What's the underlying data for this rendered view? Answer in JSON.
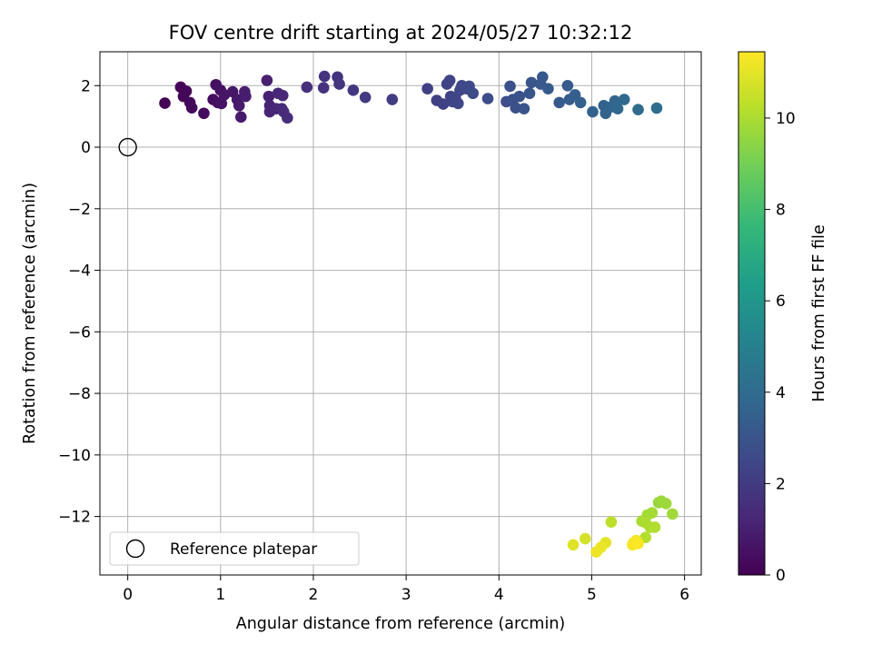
{
  "chart_data": {
    "type": "scatter",
    "title": "FOV centre drift starting at 2024/05/27 10:32:12",
    "xlabel": "Angular distance from reference (arcmin)",
    "ylabel": "Rotation from reference (arcmin)",
    "xlim": [
      -0.3,
      6.18
    ],
    "ylim": [
      -13.9,
      3.1
    ],
    "xticks": [
      0,
      1,
      2,
      3,
      4,
      5,
      6
    ],
    "yticks": [
      2,
      0,
      -2,
      -4,
      -6,
      -8,
      -10,
      -12
    ],
    "ytick_labels": [
      "2",
      "0",
      "−2",
      "−4",
      "−6",
      "−8",
      "−10",
      "−12"
    ],
    "grid": true,
    "colormap": "viridis",
    "colorbar": {
      "label": "Hours from first FF file",
      "range": [
        0,
        11.45
      ],
      "ticks": [
        0,
        2,
        4,
        6,
        8,
        10
      ]
    },
    "legend": {
      "placement": "lower-left",
      "entries": [
        {
          "label": "Reference platepar",
          "marker": "open-circle"
        }
      ]
    },
    "reference_point": {
      "x": 0,
      "y": 0
    },
    "series": [
      {
        "points": [
          {
            "x": 0.4,
            "y": 1.43,
            "c": 0.05
          },
          {
            "x": 0.57,
            "y": 1.95,
            "c": 0.1
          },
          {
            "x": 0.6,
            "y": 1.65,
            "c": 0.15
          },
          {
            "x": 0.63,
            "y": 1.82,
            "c": 0.2
          },
          {
            "x": 0.67,
            "y": 1.45,
            "c": 0.25
          },
          {
            "x": 0.69,
            "y": 1.28,
            "c": 0.3
          },
          {
            "x": 0.82,
            "y": 1.1,
            "c": 0.35
          },
          {
            "x": 0.92,
            "y": 1.55,
            "c": 0.4
          },
          {
            "x": 0.95,
            "y": 2.03,
            "c": 0.45
          },
          {
            "x": 0.97,
            "y": 1.45,
            "c": 0.5
          },
          {
            "x": 1.0,
            "y": 1.85,
            "c": 0.55
          },
          {
            "x": 1.01,
            "y": 1.42,
            "c": 0.6
          },
          {
            "x": 1.04,
            "y": 1.7,
            "c": 0.65
          },
          {
            "x": 1.13,
            "y": 1.8,
            "c": 0.7
          },
          {
            "x": 1.18,
            "y": 1.55,
            "c": 0.75
          },
          {
            "x": 1.2,
            "y": 1.35,
            "c": 0.8
          },
          {
            "x": 1.22,
            "y": 0.98,
            "c": 0.85
          },
          {
            "x": 1.26,
            "y": 1.8,
            "c": 0.9
          },
          {
            "x": 1.27,
            "y": 1.65,
            "c": 0.95
          },
          {
            "x": 1.5,
            "y": 2.17,
            "c": 1.0
          },
          {
            "x": 1.52,
            "y": 1.65,
            "c": 1.05
          },
          {
            "x": 1.53,
            "y": 1.35,
            "c": 1.1
          },
          {
            "x": 1.53,
            "y": 1.15,
            "c": 1.15
          },
          {
            "x": 1.6,
            "y": 1.25,
            "c": 1.2
          },
          {
            "x": 1.62,
            "y": 1.75,
            "c": 1.25
          },
          {
            "x": 1.67,
            "y": 1.68,
            "c": 1.3
          },
          {
            "x": 1.66,
            "y": 1.25,
            "c": 1.35
          },
          {
            "x": 1.68,
            "y": 1.15,
            "c": 1.4
          },
          {
            "x": 1.72,
            "y": 0.95,
            "c": 1.45
          },
          {
            "x": 1.93,
            "y": 1.95,
            "c": 1.55
          },
          {
            "x": 2.11,
            "y": 1.93,
            "c": 1.62
          },
          {
            "x": 2.12,
            "y": 2.3,
            "c": 1.7
          },
          {
            "x": 2.26,
            "y": 2.28,
            "c": 1.75
          },
          {
            "x": 2.28,
            "y": 2.05,
            "c": 1.8
          },
          {
            "x": 2.43,
            "y": 1.85,
            "c": 1.88
          },
          {
            "x": 2.56,
            "y": 1.62,
            "c": 1.95
          },
          {
            "x": 2.85,
            "y": 1.55,
            "c": 2.05
          },
          {
            "x": 3.23,
            "y": 1.9,
            "c": 2.15
          },
          {
            "x": 3.33,
            "y": 1.52,
            "c": 2.2
          },
          {
            "x": 3.4,
            "y": 1.4,
            "c": 2.25
          },
          {
            "x": 3.44,
            "y": 2.05,
            "c": 2.28
          },
          {
            "x": 3.47,
            "y": 2.17,
            "c": 2.32
          },
          {
            "x": 3.48,
            "y": 1.65,
            "c": 2.35
          },
          {
            "x": 3.5,
            "y": 1.48,
            "c": 2.38
          },
          {
            "x": 3.53,
            "y": 1.6,
            "c": 2.42
          },
          {
            "x": 3.56,
            "y": 1.42,
            "c": 2.45
          },
          {
            "x": 3.58,
            "y": 1.85,
            "c": 2.48
          },
          {
            "x": 3.6,
            "y": 2.0,
            "c": 2.52
          },
          {
            "x": 3.65,
            "y": 1.9,
            "c": 2.55
          },
          {
            "x": 3.68,
            "y": 1.98,
            "c": 2.58
          },
          {
            "x": 3.72,
            "y": 1.75,
            "c": 2.62
          },
          {
            "x": 3.88,
            "y": 1.58,
            "c": 2.68
          },
          {
            "x": 4.08,
            "y": 1.48,
            "c": 2.75
          },
          {
            "x": 4.12,
            "y": 1.98,
            "c": 2.8
          },
          {
            "x": 4.15,
            "y": 1.55,
            "c": 2.85
          },
          {
            "x": 4.18,
            "y": 1.28,
            "c": 2.88
          },
          {
            "x": 4.22,
            "y": 1.65,
            "c": 2.92
          },
          {
            "x": 4.27,
            "y": 1.25,
            "c": 2.96
          },
          {
            "x": 4.33,
            "y": 1.75,
            "c": 3.0
          },
          {
            "x": 4.35,
            "y": 2.1,
            "c": 3.05
          },
          {
            "x": 4.45,
            "y": 2.05,
            "c": 3.1
          },
          {
            "x": 4.47,
            "y": 2.28,
            "c": 3.15
          },
          {
            "x": 4.53,
            "y": 1.9,
            "c": 3.2
          },
          {
            "x": 4.65,
            "y": 1.45,
            "c": 3.25
          },
          {
            "x": 4.74,
            "y": 2.0,
            "c": 3.3
          },
          {
            "x": 4.76,
            "y": 1.55,
            "c": 3.35
          },
          {
            "x": 4.82,
            "y": 1.7,
            "c": 3.4
          },
          {
            "x": 4.88,
            "y": 1.45,
            "c": 3.45
          },
          {
            "x": 5.01,
            "y": 1.15,
            "c": 3.55
          },
          {
            "x": 5.13,
            "y": 1.35,
            "c": 3.6
          },
          {
            "x": 5.15,
            "y": 1.1,
            "c": 3.65
          },
          {
            "x": 5.2,
            "y": 1.3,
            "c": 3.7
          },
          {
            "x": 5.25,
            "y": 1.5,
            "c": 3.75
          },
          {
            "x": 5.28,
            "y": 1.25,
            "c": 3.8
          },
          {
            "x": 5.35,
            "y": 1.55,
            "c": 3.85
          },
          {
            "x": 5.5,
            "y": 1.22,
            "c": 3.95
          },
          {
            "x": 5.7,
            "y": 1.27,
            "c": 4.05
          },
          {
            "x": 5.72,
            "y": -11.55,
            "c": 9.65
          },
          {
            "x": 5.75,
            "y": -11.5,
            "c": 9.7
          },
          {
            "x": 5.8,
            "y": -11.58,
            "c": 9.75
          },
          {
            "x": 5.87,
            "y": -11.92,
            "c": 9.8
          },
          {
            "x": 5.6,
            "y": -11.95,
            "c": 9.85
          },
          {
            "x": 5.65,
            "y": -11.88,
            "c": 9.9
          },
          {
            "x": 5.54,
            "y": -12.15,
            "c": 9.95
          },
          {
            "x": 5.58,
            "y": -12.2,
            "c": 10.0
          },
          {
            "x": 5.63,
            "y": -12.35,
            "c": 10.05
          },
          {
            "x": 5.68,
            "y": -12.35,
            "c": 10.1
          },
          {
            "x": 5.58,
            "y": -12.68,
            "c": 10.15
          },
          {
            "x": 5.21,
            "y": -12.18,
            "c": 10.3
          },
          {
            "x": 4.93,
            "y": -12.72,
            "c": 10.7
          },
          {
            "x": 4.8,
            "y": -12.92,
            "c": 10.9
          },
          {
            "x": 5.15,
            "y": -12.85,
            "c": 11.0
          },
          {
            "x": 5.1,
            "y": -13.0,
            "c": 11.1
          },
          {
            "x": 5.05,
            "y": -13.15,
            "c": 11.2
          },
          {
            "x": 5.45,
            "y": -12.85,
            "c": 11.25
          },
          {
            "x": 5.48,
            "y": -12.78,
            "c": 11.3
          },
          {
            "x": 5.44,
            "y": -12.92,
            "c": 11.35
          },
          {
            "x": 5.5,
            "y": -12.88,
            "c": 11.4
          }
        ]
      }
    ]
  }
}
